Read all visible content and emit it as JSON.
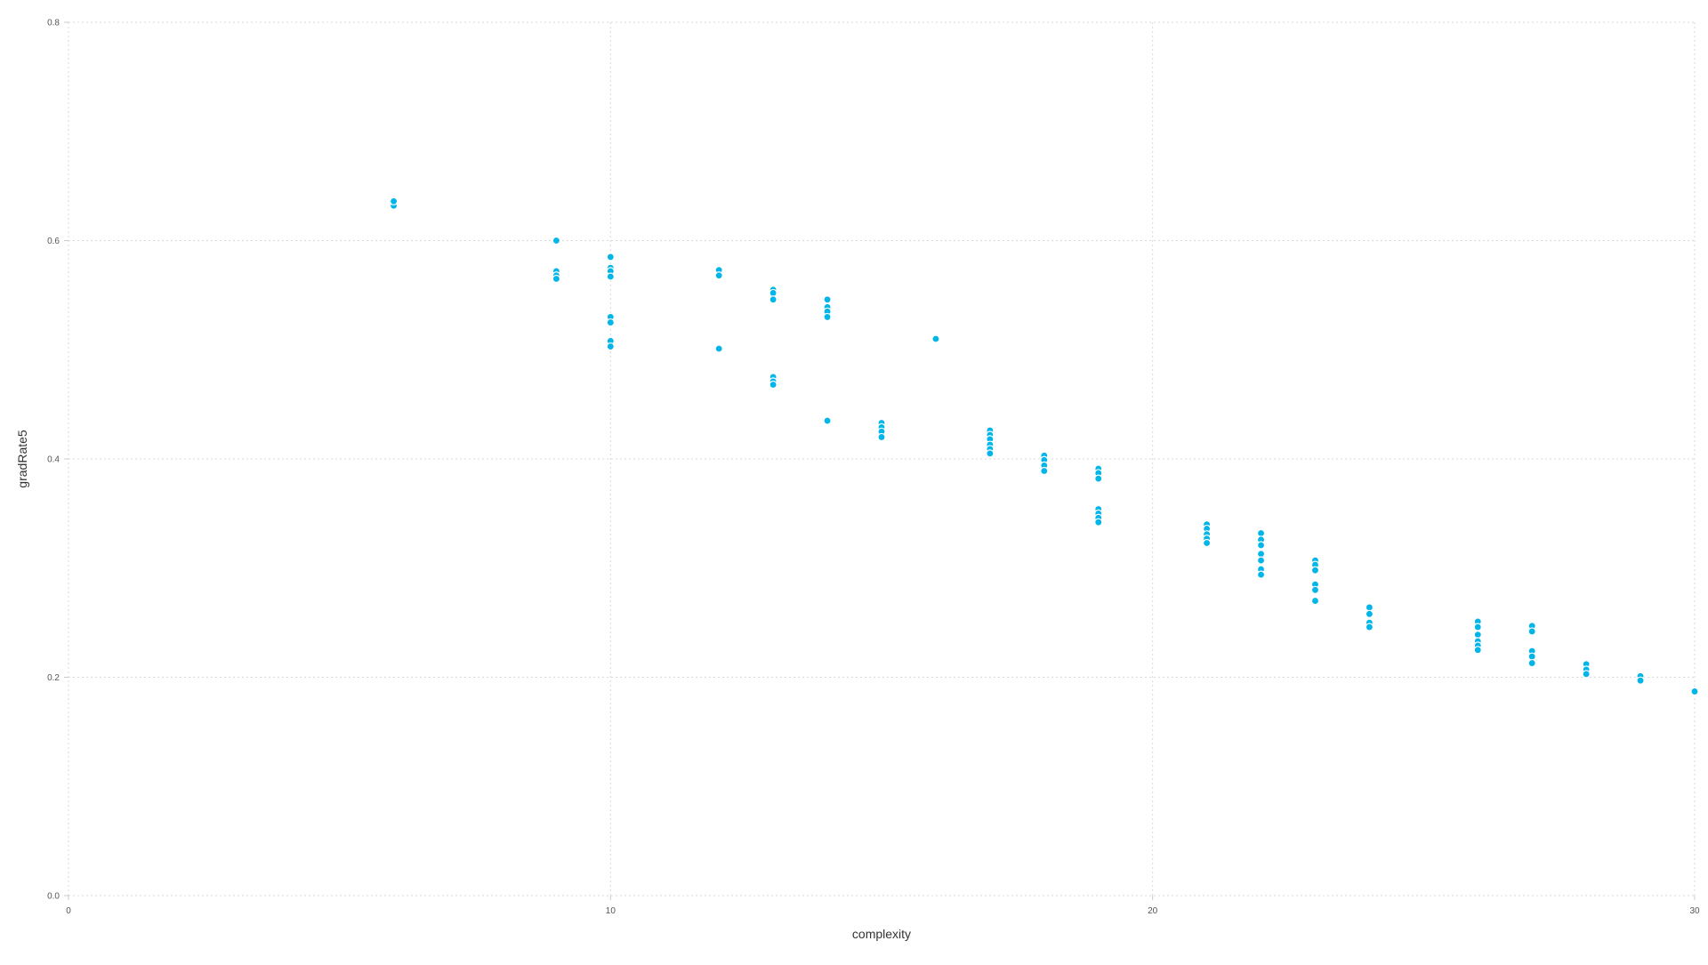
{
  "colors": {
    "point": "#00b5e8",
    "grid": "#d9d9d9",
    "text": "#555555"
  },
  "chart_data": {
    "type": "scatter",
    "title": "",
    "xlabel": "complexity",
    "ylabel": "gradRate5",
    "xlim": [
      0,
      30
    ],
    "ylim": [
      0.0,
      0.8
    ],
    "xticks": [
      0,
      10,
      20,
      30
    ],
    "yticks": [
      0.0,
      0.2,
      0.4,
      0.6,
      0.8
    ],
    "xtick_labels": [
      "0",
      "10",
      "20",
      "30"
    ],
    "ytick_labels": [
      "0.0",
      "0.2",
      "0.4",
      "0.6",
      "0.8"
    ],
    "grid": true,
    "legend": "none",
    "series": [
      {
        "points": [
          [
            6,
            0.632
          ],
          [
            6,
            0.636
          ],
          [
            9,
            0.6
          ],
          [
            9,
            0.572
          ],
          [
            9,
            0.568
          ],
          [
            9,
            0.565
          ],
          [
            10,
            0.585
          ],
          [
            10,
            0.575
          ],
          [
            10,
            0.572
          ],
          [
            10,
            0.567
          ],
          [
            10,
            0.53
          ],
          [
            10,
            0.525
          ],
          [
            10,
            0.508
          ],
          [
            10,
            0.503
          ],
          [
            12,
            0.573
          ],
          [
            12,
            0.568
          ],
          [
            12,
            0.501
          ],
          [
            13,
            0.555
          ],
          [
            13,
            0.552
          ],
          [
            13,
            0.546
          ],
          [
            13,
            0.475
          ],
          [
            13,
            0.471
          ],
          [
            13,
            0.468
          ],
          [
            14,
            0.546
          ],
          [
            14,
            0.539
          ],
          [
            14,
            0.535
          ],
          [
            14,
            0.53
          ],
          [
            14,
            0.435
          ],
          [
            15,
            0.433
          ],
          [
            15,
            0.429
          ],
          [
            15,
            0.425
          ],
          [
            15,
            0.42
          ],
          [
            16,
            0.51
          ],
          [
            17,
            0.426
          ],
          [
            17,
            0.422
          ],
          [
            17,
            0.418
          ],
          [
            17,
            0.413
          ],
          [
            17,
            0.409
          ],
          [
            17,
            0.405
          ],
          [
            18,
            0.403
          ],
          [
            18,
            0.399
          ],
          [
            18,
            0.394
          ],
          [
            18,
            0.389
          ],
          [
            19,
            0.391
          ],
          [
            19,
            0.387
          ],
          [
            19,
            0.382
          ],
          [
            19,
            0.354
          ],
          [
            19,
            0.35
          ],
          [
            19,
            0.346
          ],
          [
            19,
            0.342
          ],
          [
            21,
            0.34
          ],
          [
            21,
            0.336
          ],
          [
            21,
            0.331
          ],
          [
            21,
            0.327
          ],
          [
            21,
            0.323
          ],
          [
            22,
            0.332
          ],
          [
            22,
            0.326
          ],
          [
            22,
            0.321
          ],
          [
            22,
            0.313
          ],
          [
            22,
            0.307
          ],
          [
            22,
            0.299
          ],
          [
            22,
            0.294
          ],
          [
            23,
            0.307
          ],
          [
            23,
            0.303
          ],
          [
            23,
            0.298
          ],
          [
            23,
            0.285
          ],
          [
            23,
            0.28
          ],
          [
            23,
            0.27
          ],
          [
            24,
            0.264
          ],
          [
            24,
            0.258
          ],
          [
            24,
            0.25
          ],
          [
            24,
            0.246
          ],
          [
            26,
            0.251
          ],
          [
            26,
            0.246
          ],
          [
            26,
            0.239
          ],
          [
            26,
            0.233
          ],
          [
            26,
            0.229
          ],
          [
            26,
            0.225
          ],
          [
            27,
            0.247
          ],
          [
            27,
            0.242
          ],
          [
            27,
            0.224
          ],
          [
            27,
            0.219
          ],
          [
            27,
            0.213
          ],
          [
            28,
            0.212
          ],
          [
            28,
            0.207
          ],
          [
            28,
            0.203
          ],
          [
            29,
            0.201
          ],
          [
            29,
            0.197
          ],
          [
            30,
            0.187
          ]
        ]
      }
    ]
  }
}
